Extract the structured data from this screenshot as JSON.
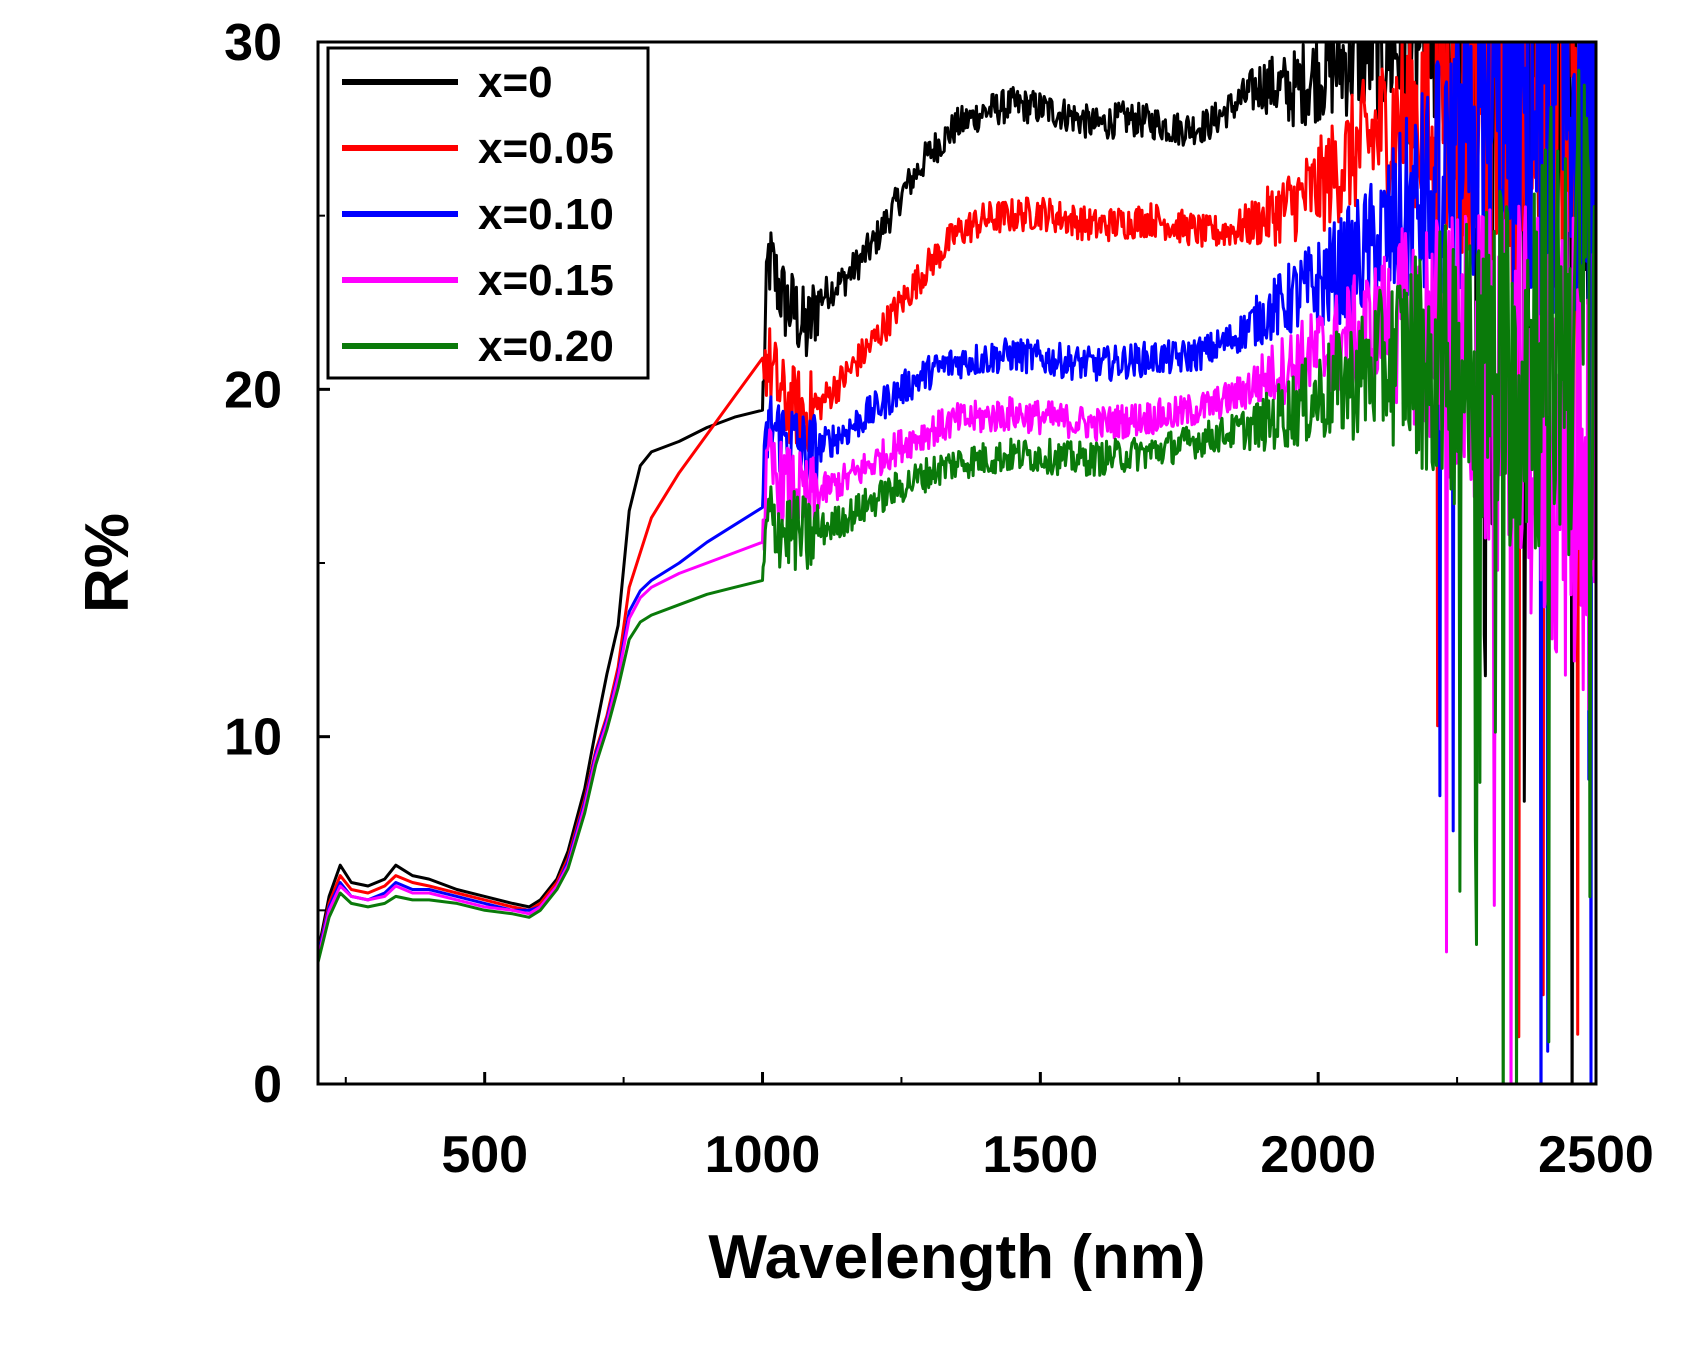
{
  "chart_data": {
    "type": "line",
    "title": "",
    "xlabel": "Wavelength (nm)",
    "ylabel": "R%",
    "xlim": [
      200,
      2500
    ],
    "ylim": [
      0,
      30
    ],
    "x_ticks": [
      500,
      1000,
      1500,
      2000,
      2500
    ],
    "x_tick_labels": [
      "500",
      "1000",
      "1500",
      "2000",
      "2500"
    ],
    "x_minor_ticks": [
      250,
      750,
      1250,
      1750,
      2250
    ],
    "y_ticks": [
      0,
      10,
      20,
      30
    ],
    "y_tick_labels": [
      "0",
      "10",
      "20",
      "30"
    ],
    "y_minor_ticks": [
      5,
      15,
      25
    ],
    "legend_position": "top-left",
    "series": [
      {
        "name": "x=0",
        "color": "#000000",
        "x": [
          200,
          220,
          240,
          260,
          290,
          320,
          340,
          370,
          400,
          450,
          500,
          550,
          580,
          600,
          630,
          650,
          680,
          700,
          720,
          740,
          760,
          780,
          800,
          850,
          900,
          950,
          1000,
          1010,
          1040,
          1060,
          1080,
          1100,
          1150,
          1200,
          1250,
          1300,
          1350,
          1400,
          1450,
          1500,
          1550,
          1600,
          1650,
          1700,
          1750,
          1800,
          1850,
          1900,
          1950,
          2000,
          2050,
          2100,
          2150,
          2200,
          2250,
          2300,
          2350,
          2400,
          2450,
          2500
        ],
        "y": [
          3.8,
          5.4,
          6.3,
          5.8,
          5.7,
          5.9,
          6.3,
          6.0,
          5.9,
          5.6,
          5.4,
          5.2,
          5.1,
          5.3,
          5.9,
          6.7,
          8.5,
          10.2,
          11.8,
          13.2,
          16.5,
          17.8,
          18.2,
          18.5,
          18.9,
          19.2,
          19.4,
          23.8,
          22.5,
          22.2,
          21.6,
          22.6,
          23.2,
          24.2,
          25.6,
          26.8,
          27.6,
          28.0,
          28.2,
          28.1,
          27.9,
          27.6,
          27.8,
          27.7,
          27.5,
          27.6,
          28.2,
          28.8,
          28.6,
          29.1,
          29.5,
          29.8,
          30.0,
          30.0,
          30.0,
          30.0,
          30.0,
          30.0,
          30.0,
          30.0
        ]
      },
      {
        "name": "x=0.05",
        "color": "#ff0000",
        "x": [
          200,
          220,
          240,
          260,
          290,
          320,
          340,
          370,
          400,
          450,
          500,
          550,
          580,
          600,
          630,
          650,
          680,
          700,
          720,
          740,
          760,
          780,
          800,
          850,
          900,
          950,
          1000,
          1010,
          1040,
          1060,
          1080,
          1100,
          1150,
          1200,
          1250,
          1300,
          1350,
          1400,
          1450,
          1500,
          1550,
          1600,
          1650,
          1700,
          1750,
          1800,
          1850,
          1900,
          1950,
          2000,
          2050,
          2100,
          2150,
          2200,
          2250,
          2300,
          2350,
          2400,
          2450,
          2500
        ],
        "y": [
          3.7,
          5.2,
          6.0,
          5.6,
          5.5,
          5.7,
          6.0,
          5.8,
          5.7,
          5.5,
          5.3,
          5.1,
          5.0,
          5.2,
          5.8,
          6.5,
          8.2,
          9.6,
          10.6,
          12.0,
          14.3,
          15.3,
          16.3,
          17.6,
          18.7,
          19.8,
          20.9,
          20.8,
          19.6,
          19.5,
          19.3,
          19.5,
          20.4,
          21.4,
          22.5,
          23.6,
          24.5,
          24.9,
          25.0,
          25.1,
          24.9,
          24.7,
          24.8,
          24.9,
          24.7,
          24.5,
          24.6,
          24.9,
          25.3,
          25.8,
          26.6,
          27.3,
          27.8,
          28.0,
          28.2,
          28.3,
          28.6,
          29.0,
          29.5,
          30.0
        ]
      },
      {
        "name": "x=0.10",
        "color": "#0000ff",
        "x": [
          200,
          220,
          240,
          260,
          290,
          320,
          340,
          370,
          400,
          450,
          500,
          550,
          580,
          600,
          630,
          650,
          680,
          700,
          720,
          740,
          760,
          780,
          800,
          850,
          900,
          950,
          1000,
          1010,
          1040,
          1060,
          1080,
          1100,
          1150,
          1200,
          1250,
          1300,
          1350,
          1400,
          1450,
          1500,
          1550,
          1600,
          1650,
          1700,
          1750,
          1800,
          1850,
          1900,
          1950,
          2000,
          2050,
          2100,
          2150,
          2200,
          2250,
          2300,
          2350,
          2400,
          2450,
          2500
        ],
        "y": [
          3.7,
          5.1,
          5.8,
          5.4,
          5.3,
          5.5,
          5.8,
          5.6,
          5.6,
          5.4,
          5.2,
          5.0,
          5.0,
          5.1,
          5.7,
          6.4,
          8.1,
          9.5,
          10.5,
          11.8,
          13.6,
          14.2,
          14.5,
          15.0,
          15.6,
          16.1,
          16.6,
          19.0,
          18.6,
          18.5,
          18.1,
          18.3,
          18.8,
          19.4,
          20.0,
          20.5,
          20.8,
          20.9,
          21.0,
          20.9,
          20.8,
          20.7,
          20.8,
          20.9,
          20.9,
          21.1,
          21.5,
          22.1,
          22.6,
          23.0,
          23.5,
          24.1,
          24.8,
          25.6,
          26.4,
          27.0,
          27.8,
          28.5,
          29.2,
          30.0
        ]
      },
      {
        "name": "x=0.15",
        "color": "#ff00ff",
        "x": [
          200,
          220,
          240,
          260,
          290,
          320,
          340,
          370,
          400,
          450,
          500,
          550,
          580,
          600,
          630,
          650,
          680,
          700,
          720,
          740,
          760,
          780,
          800,
          850,
          900,
          950,
          1000,
          1010,
          1040,
          1060,
          1080,
          1100,
          1150,
          1200,
          1250,
          1300,
          1350,
          1400,
          1450,
          1500,
          1550,
          1600,
          1650,
          1700,
          1750,
          1800,
          1850,
          1900,
          1950,
          2000,
          2050,
          2100,
          2150,
          2200,
          2250,
          2300,
          2350,
          2400,
          2450,
          2500
        ],
        "y": [
          3.6,
          5.0,
          5.7,
          5.4,
          5.3,
          5.4,
          5.7,
          5.5,
          5.5,
          5.3,
          5.1,
          5.0,
          4.9,
          5.1,
          5.7,
          6.3,
          8.0,
          9.4,
          10.4,
          11.7,
          13.4,
          14.0,
          14.3,
          14.7,
          15.0,
          15.3,
          15.6,
          17.8,
          17.2,
          17.1,
          16.8,
          17.0,
          17.4,
          17.9,
          18.4,
          18.8,
          19.1,
          19.2,
          19.3,
          19.2,
          19.1,
          19.0,
          19.1,
          19.2,
          19.3,
          19.5,
          19.8,
          20.3,
          20.7,
          21.0,
          21.4,
          21.7,
          21.9,
          21.6,
          21.0,
          20.2,
          19.5,
          19.0,
          18.5,
          18.0
        ]
      },
      {
        "name": "x=0.20",
        "color": "#0a7a0a",
        "x": [
          200,
          220,
          240,
          260,
          290,
          320,
          340,
          370,
          400,
          450,
          500,
          550,
          580,
          600,
          630,
          650,
          680,
          700,
          720,
          740,
          760,
          780,
          800,
          850,
          900,
          950,
          1000,
          1010,
          1040,
          1060,
          1080,
          1100,
          1150,
          1200,
          1250,
          1300,
          1350,
          1400,
          1450,
          1500,
          1550,
          1600,
          1650,
          1700,
          1750,
          1800,
          1850,
          1900,
          1950,
          2000,
          2050,
          2100,
          2150,
          2200,
          2250,
          2300,
          2350,
          2400,
          2450,
          2500
        ],
        "y": [
          3.5,
          4.8,
          5.5,
          5.2,
          5.1,
          5.2,
          5.4,
          5.3,
          5.3,
          5.2,
          5.0,
          4.9,
          4.8,
          5.0,
          5.6,
          6.2,
          7.8,
          9.2,
          10.2,
          11.4,
          12.8,
          13.3,
          13.5,
          13.8,
          14.1,
          14.3,
          14.5,
          16.3,
          15.9,
          15.9,
          15.7,
          15.9,
          16.3,
          16.8,
          17.2,
          17.6,
          17.9,
          18.0,
          18.1,
          18.1,
          18.0,
          18.0,
          18.1,
          18.2,
          18.4,
          18.6,
          18.8,
          19.0,
          19.4,
          19.8,
          20.2,
          20.6,
          21.0,
          21.0,
          20.8,
          20.6,
          21.0,
          21.5,
          22.0,
          23.0
        ]
      }
    ]
  }
}
